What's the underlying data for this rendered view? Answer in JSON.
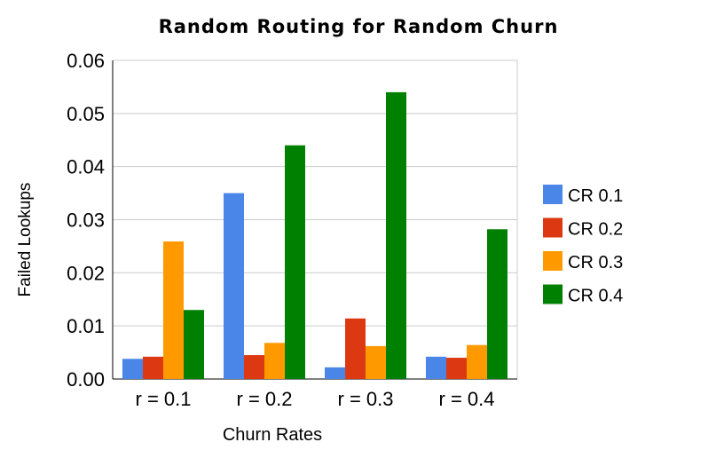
{
  "chart_data": {
    "type": "bar",
    "title": "Random Routing  for Random Churn",
    "xlabel": "Churn Rates",
    "ylabel": "Failed Lookups",
    "categories": [
      "r = 0.1",
      "r = 0.2",
      "r = 0.3",
      "r = 0.4"
    ],
    "ylim": [
      0,
      0.06
    ],
    "yticks": [
      "0.00",
      "0.01",
      "0.02",
      "0.03",
      "0.04",
      "0.05",
      "0.06"
    ],
    "grid": true,
    "legend_position": "right",
    "series": [
      {
        "name": "CR 0.1",
        "color": "#4a86e8",
        "values": [
          0.0038,
          0.035,
          0.0022,
          0.0042
        ]
      },
      {
        "name": "CR 0.2",
        "color": "#dc3912",
        "values": [
          0.0042,
          0.0045,
          0.0114,
          0.004
        ]
      },
      {
        "name": "CR 0.3",
        "color": "#ff9900",
        "values": [
          0.0259,
          0.0068,
          0.0062,
          0.0064
        ]
      },
      {
        "name": "CR 0.4",
        "color": "#008000",
        "values": [
          0.013,
          0.044,
          0.054,
          0.0282
        ]
      }
    ]
  }
}
